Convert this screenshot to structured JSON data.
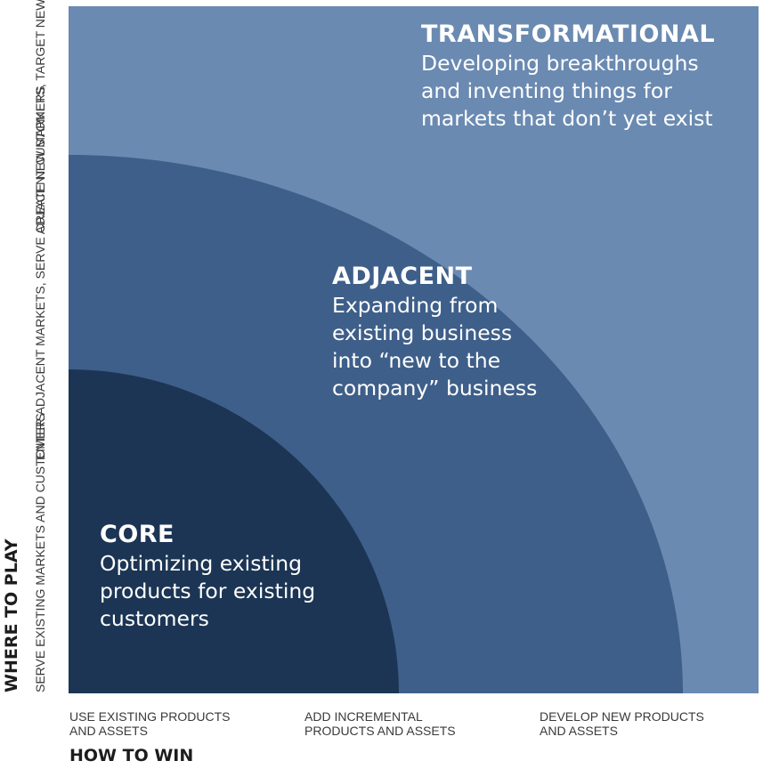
{
  "colors": {
    "transformational": "#6a8ab1",
    "adjacent": "#3e5f89",
    "core": "#1c3554"
  },
  "zones": {
    "transformational": {
      "title": "TRANSFORMATIONAL",
      "description": "Developing breakthroughs\nand inventing things for\nmarkets that don’t yet exist"
    },
    "adjacent": {
      "title": "ADJACENT",
      "description": "Expanding from\nexisting business\ninto “new to the\ncompany” business"
    },
    "core": {
      "title": "CORE",
      "description": "Optimizing existing\nproducts for existing\ncustomers"
    }
  },
  "y_axis": {
    "title": "WHERE TO PLAY",
    "levels": [
      "SERVE EXISTING MARKETS\nAND CUSTOMERS",
      "ENTER ADJACENT MARKETS,\nSERVE ADJACENT CUSTOMERS",
      "CREATE NEW MARKETS,\nTARGET NEW CUSTOMER NEEDS"
    ]
  },
  "x_axis": {
    "title": "HOW TO WIN",
    "levels": [
      "USE EXISTING PRODUCTS\nAND ASSETS",
      "ADD INCREMENTAL\nPRODUCTS AND ASSETS",
      "DEVELOP NEW PRODUCTS\nAND ASSETS"
    ]
  }
}
